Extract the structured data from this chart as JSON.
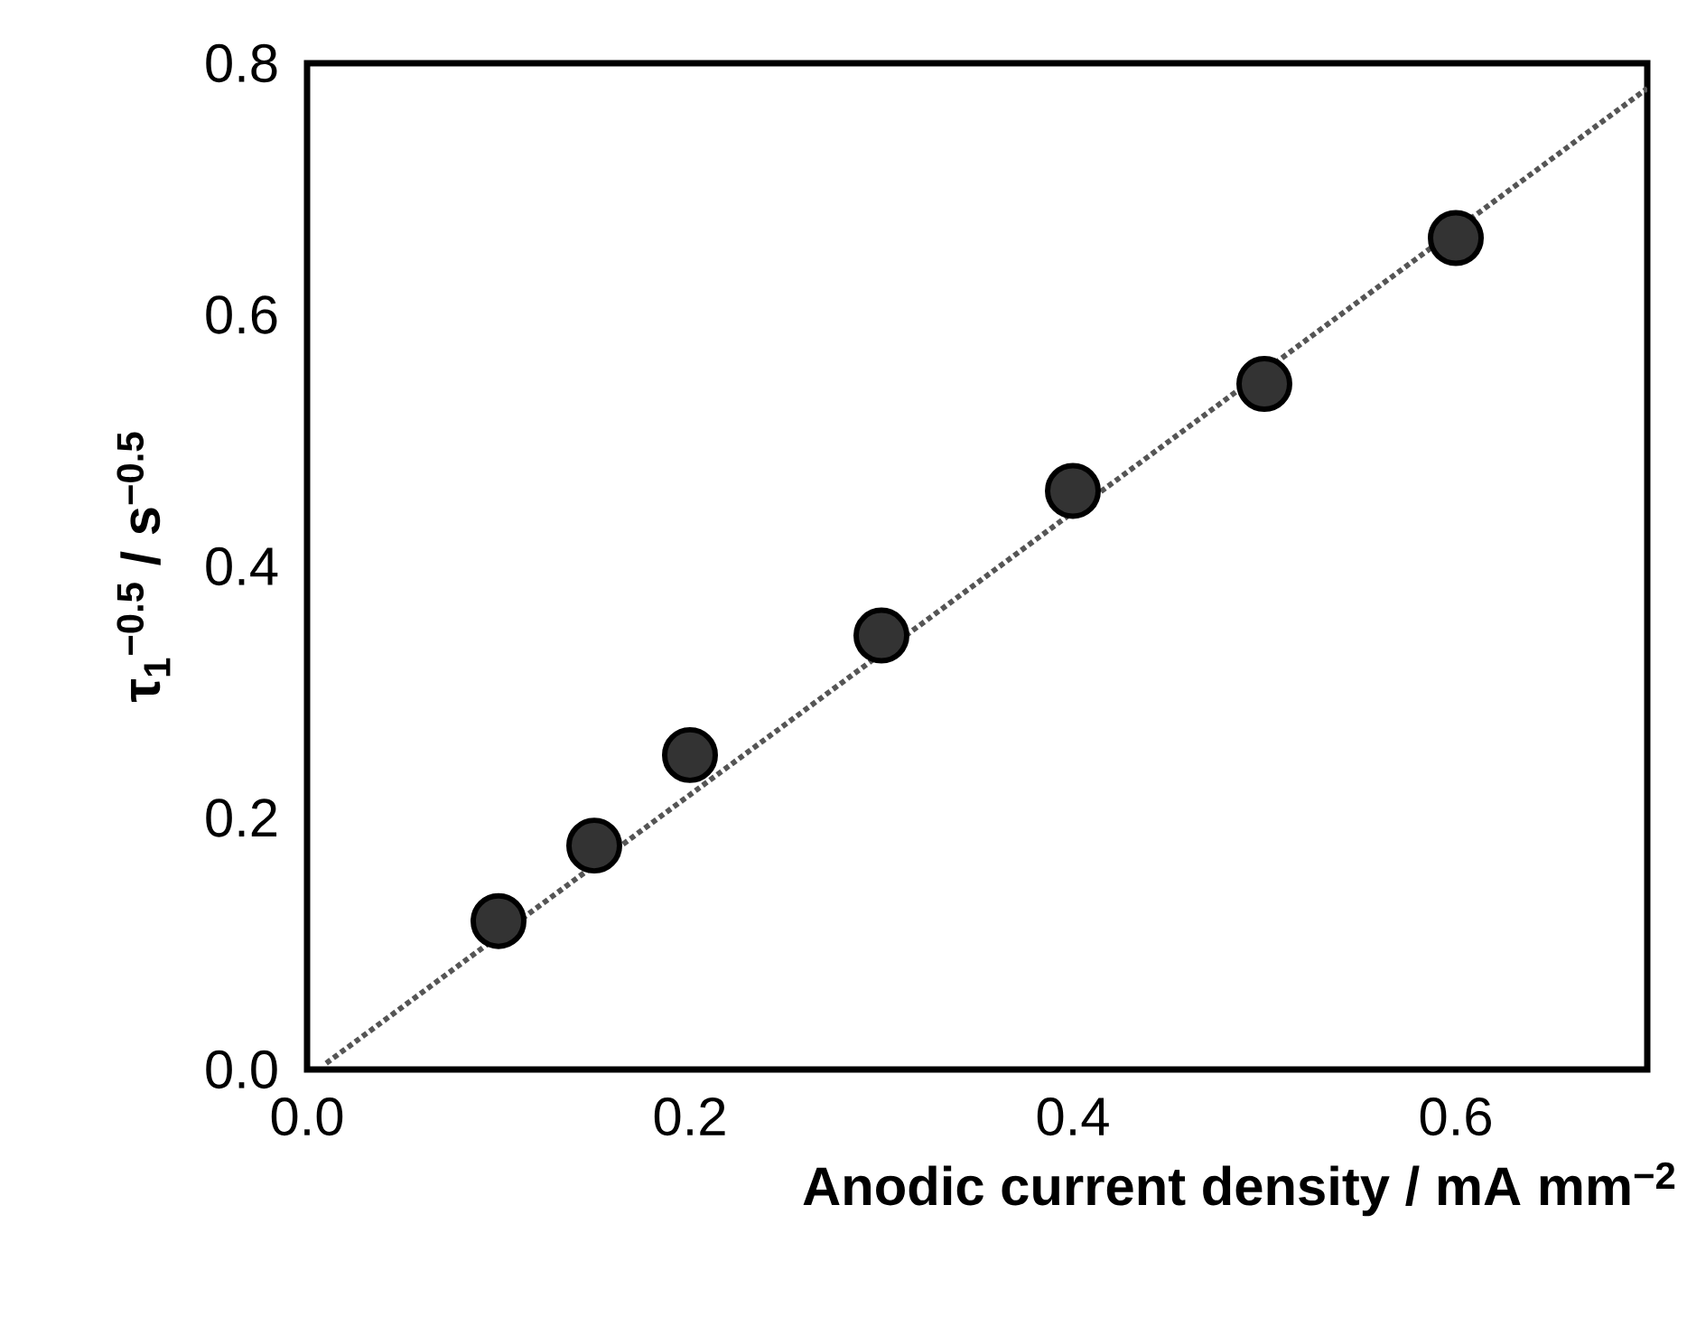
{
  "chart_data": {
    "type": "scatter",
    "xlabel": "Anodic current density / mA mm$^{−2}$",
    "ylabel": "τ$_{1}$$^{−0.5}$ / s$^{−0.5}$",
    "xlim": [
      0,
      0.7
    ],
    "ylim": [
      0,
      0.8
    ],
    "xticks": [
      {
        "value": 0,
        "label": "0.0"
      },
      {
        "value": 0.2,
        "label": "0.2"
      },
      {
        "value": 0.4,
        "label": "0.4"
      },
      {
        "value": 0.6,
        "label": "0.6"
      }
    ],
    "yticks": [
      {
        "value": 0,
        "label": "0.0"
      },
      {
        "value": 0.2,
        "label": "0.2"
      },
      {
        "value": 0.4,
        "label": "0.4"
      },
      {
        "value": 0.6,
        "label": "0.6"
      },
      {
        "value": 0.8,
        "label": "0.8"
      }
    ],
    "grid": false,
    "series": [
      {
        "color": "#333333",
        "marker": "circle",
        "x": [
          0.1,
          0.15,
          0.2,
          0.3,
          0.4,
          0.5,
          0.6
        ],
        "values": [
          0.118,
          0.178,
          0.25,
          0.345,
          0.46,
          0.545,
          0.661
        ]
      },
      {
        "type": "line",
        "color": "#555555",
        "line_style": "dotted",
        "marker": "none",
        "x": [
          0.01,
          0.7
        ],
        "values": [
          0.005,
          0.78
        ]
      }
    ]
  }
}
